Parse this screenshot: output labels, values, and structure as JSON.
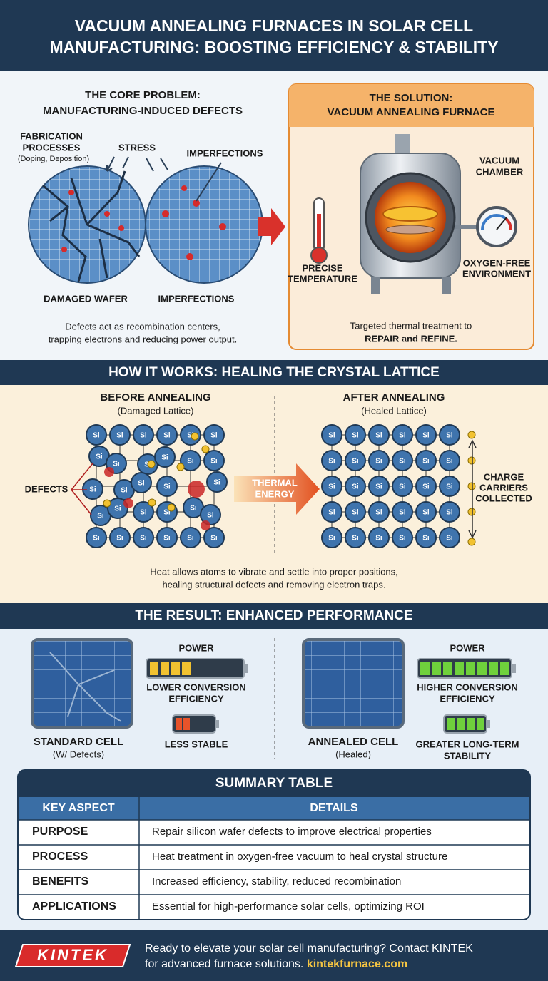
{
  "header": {
    "title_lines": [
      "VACUUM ANNEALING FURNACES IN SOLAR CELL",
      "MANUFACTURING: BOOSTING EFFICIENCY & STABILITY"
    ]
  },
  "problem": {
    "title_lines": [
      "THE CORE PROBLEM:",
      "MANUFACTURING-INDUCED DEFECTS"
    ],
    "fabrication_lines": [
      "FABRICATION",
      "PROCESSES"
    ],
    "fabrication_note": "(Doping, Deposition)",
    "stress": "STRESS",
    "imperfections_top": "IMPERFECTIONS",
    "damaged_wafer": "DAMAGED WAFER",
    "imperfections_bottom": "IMPERFECTIONS",
    "caption_lines": [
      "Defects act as recombination centers,",
      "trapping electrons and reducing power output."
    ]
  },
  "solution": {
    "title_lines": [
      "THE SOLUTION:",
      "VACUUM ANNEALING FURNACE"
    ],
    "vacuum_chamber_lines": [
      "VACUUM",
      "CHAMBER"
    ],
    "temperature_lines": [
      "PRECISE",
      "TEMPERATURE"
    ],
    "oxygen_free_lines": [
      "OXYGEN-FREE",
      "ENVIRONMENT"
    ],
    "caption_lines": [
      "Targeted thermal treatment to",
      "REPAIR and REFINE."
    ]
  },
  "how_it_works": {
    "title": "HOW IT WORKS: HEALING THE CRYSTAL LATTICE",
    "before": {
      "title": "BEFORE ANNEALING",
      "subtitle": "(Damaged Lattice)"
    },
    "after": {
      "title": "AFTER ANNEALING",
      "subtitle": "(Healed Lattice)"
    },
    "atom_label": "Si",
    "defects": "DEFECTS",
    "thermal_energy_lines": [
      "THERMAL",
      "ENERGY"
    ],
    "charge_carriers_lines": [
      "CHARGE",
      "CARRIERS",
      "COLLECTED"
    ],
    "caption_lines": [
      "Heat allows atoms to vibrate and settle into proper positions,",
      "healing structural defects and removing electron traps."
    ]
  },
  "result": {
    "title": "THE RESULT: ENHANCED PERFORMANCE",
    "standard": {
      "name": "STANDARD CELL",
      "note": "(W/ Defects)",
      "power": "POWER",
      "efficiency_lines": [
        "LOWER CONVERSION",
        "EFFICIENCY"
      ],
      "stability_lines": [
        "LESS STABLE"
      ]
    },
    "annealed": {
      "name": "ANNEALED CELL",
      "note": "(Healed)",
      "power": "POWER",
      "efficiency_lines": [
        "HIGHER CONVERSION",
        "EFFICIENCY"
      ],
      "stability_lines": [
        "GREATER LONG-TERM",
        "STABILITY"
      ]
    }
  },
  "summary_table": {
    "title": "SUMMARY TABLE",
    "columns": [
      "KEY ASPECT",
      "DETAILS"
    ],
    "rows": [
      [
        "PURPOSE",
        "Repair silicon wafer defects to improve electrical properties"
      ],
      [
        "PROCESS",
        "Heat treatment in oxygen-free vacuum to heal crystal structure"
      ],
      [
        "BENEFITS",
        "Increased efficiency, stability, reduced recombination"
      ],
      [
        "APPLICATIONS",
        "Essential for high-performance solar cells, optimizing ROI"
      ]
    ]
  },
  "footer": {
    "logo": "KINTEK",
    "lines": [
      "Ready to elevate your solar cell manufacturing? Contact KINTEK",
      "for advanced furnace solutions."
    ],
    "link": "kintekfurnace.com"
  }
}
